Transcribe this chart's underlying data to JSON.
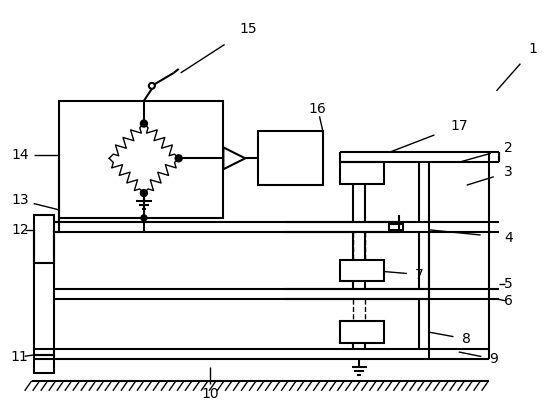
{
  "bg_color": "#ffffff",
  "line_color": "#000000",
  "lw": 1.5,
  "tlw": 1.0,
  "fs": 10
}
